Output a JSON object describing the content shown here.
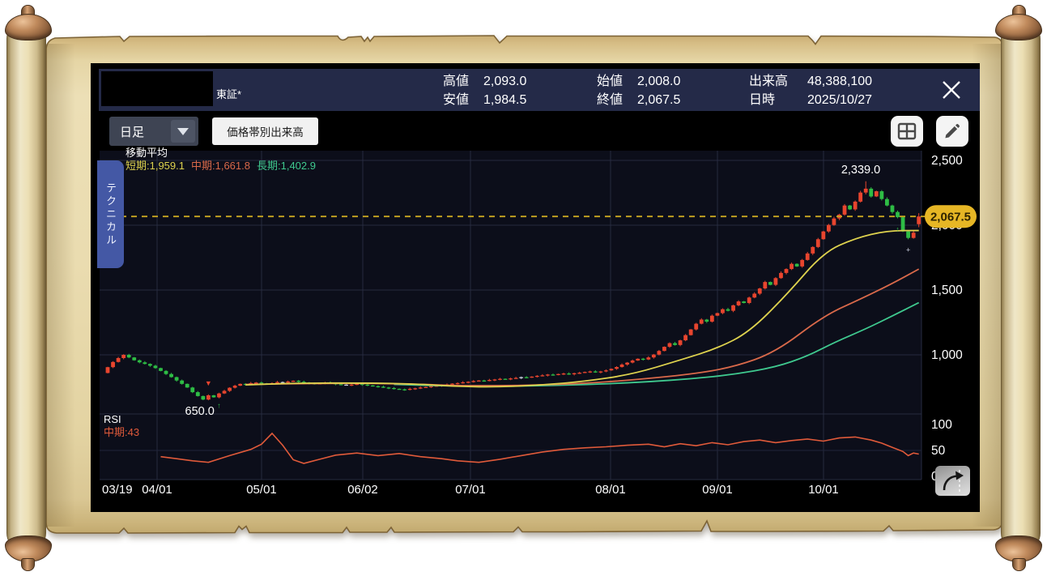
{
  "header": {
    "exchange_label": "東証*",
    "stock_name_masked": true,
    "stats": [
      {
        "label": "高値",
        "value": "2,093.0"
      },
      {
        "label": "安値",
        "value": "1,984.5"
      },
      {
        "label": "始値",
        "value": "2,008.0"
      },
      {
        "label": "終値",
        "value": "2,067.5"
      },
      {
        "label": "出来高",
        "value": "48,388,100"
      },
      {
        "label": "日時",
        "value": "2025/10/27"
      }
    ]
  },
  "toolbar": {
    "timeframe_value": "日足",
    "volume_by_price_label": "価格帯別出来高",
    "icons": [
      "grid-layout-icon",
      "pencil-icon"
    ]
  },
  "side_tab_label": "テクニカル",
  "legend": {
    "title": "移動平均",
    "short": "短期:1,959.1",
    "mid": "中期:1,661.8",
    "long": "長期:1,402.9"
  },
  "rsi_legend": {
    "title": "RSI",
    "mid": "中期:43"
  },
  "annotations": {
    "high": "2,339.0",
    "low": "650.0",
    "current": "2,067.5"
  },
  "axes": {
    "x_labels": [
      "03/19",
      "04/01",
      "05/01",
      "06/02",
      "07/01",
      "08/01",
      "09/01",
      "10/01"
    ],
    "price_ticks": [
      {
        "label": "2,500",
        "value": 2500
      },
      {
        "label": "2,000",
        "value": 2000
      },
      {
        "label": "1,500",
        "value": 1500
      },
      {
        "label": "1,000",
        "value": 1000
      }
    ],
    "rsi_ticks": [
      {
        "label": "100",
        "value": 100
      },
      {
        "label": "50",
        "value": 50
      },
      {
        "label": "0",
        "value": 0
      }
    ]
  },
  "chart_data": {
    "type": "candlestick+line",
    "period": "daily 2025/03/19 - 2025/10/27",
    "first_open": 860,
    "closes": [
      905,
      945,
      975,
      1000,
      980,
      958,
      942,
      930,
      916,
      898,
      876,
      852,
      828,
      802,
      776,
      748,
      712,
      682,
      655,
      688,
      672,
      702,
      722,
      746,
      762,
      776,
      770,
      782,
      786,
      780,
      776,
      782,
      790,
      786,
      794,
      800,
      792,
      786,
      780,
      776,
      780,
      786,
      780,
      774,
      770,
      766,
      770,
      776,
      770,
      764,
      758,
      754,
      748,
      744,
      738,
      734,
      730,
      738,
      742,
      748,
      752,
      758,
      762,
      768,
      772,
      778,
      782,
      788,
      792,
      798,
      802,
      800,
      806,
      810,
      815,
      812,
      818,
      822,
      828,
      825,
      832,
      838,
      842,
      848,
      845,
      852,
      856,
      850,
      858,
      862,
      868,
      872,
      866,
      872,
      880,
      892,
      906,
      925,
      940,
      956,
      970,
      964,
      980,
      1002,
      1030,
      1062,
      1090,
      1076,
      1112,
      1152,
      1196,
      1240,
      1272,
      1256,
      1302,
      1322,
      1352,
      1340,
      1382,
      1412,
      1400,
      1442,
      1472,
      1512,
      1562,
      1540,
      1592,
      1632,
      1662,
      1702,
      1682,
      1732,
      1782,
      1832,
      1892,
      1952,
      2002,
      2052,
      2082,
      2152,
      2122,
      2182,
      2252,
      2282,
      2222,
      2262,
      2202,
      2152,
      2102,
      2062,
      1952,
      1902,
      1942,
      2067.5
    ],
    "last_candle": {
      "open": 2008,
      "high": 2093,
      "low": 1984.5,
      "close": 2067.5
    },
    "key_high": {
      "index": 143,
      "value": 2339
    },
    "key_low": {
      "index": 18,
      "value": 650
    },
    "doji_days": [
      33,
      45,
      78
    ],
    "ma_short_value": 1959.1,
    "ma_mid_value": 1661.8,
    "ma_long_value": 1402.9,
    "rsi_mid_value": 43,
    "ma_short": [
      [
        26,
        768
      ],
      [
        36,
        782
      ],
      [
        48,
        783
      ],
      [
        58,
        776
      ],
      [
        66,
        755
      ],
      [
        74,
        752
      ],
      [
        82,
        768
      ],
      [
        90,
        795
      ],
      [
        99,
        850
      ],
      [
        108,
        960
      ],
      [
        115,
        1050
      ],
      [
        121,
        1175
      ],
      [
        128,
        1460
      ],
      [
        135,
        1790
      ],
      [
        141,
        1900
      ],
      [
        147,
        1958
      ],
      [
        153,
        1959.1
      ]
    ],
    "ma_mid": [
      [
        26,
        772
      ],
      [
        40,
        780
      ],
      [
        50,
        780
      ],
      [
        60,
        772
      ],
      [
        66,
        762
      ],
      [
        74,
        762
      ],
      [
        82,
        768
      ],
      [
        90,
        780
      ],
      [
        99,
        806
      ],
      [
        110,
        850
      ],
      [
        118,
        905
      ],
      [
        126,
        1020
      ],
      [
        135,
        1300
      ],
      [
        142,
        1430
      ],
      [
        148,
        1550
      ],
      [
        153,
        1661.8
      ]
    ],
    "ma_long": [
      [
        54,
        772
      ],
      [
        64,
        760
      ],
      [
        74,
        756
      ],
      [
        84,
        764
      ],
      [
        94,
        776
      ],
      [
        102,
        792
      ],
      [
        110,
        815
      ],
      [
        118,
        848
      ],
      [
        126,
        905
      ],
      [
        132,
        990
      ],
      [
        137,
        1095
      ],
      [
        143,
        1200
      ],
      [
        148,
        1300
      ],
      [
        153,
        1402.9
      ]
    ],
    "rsi": [
      [
        10,
        38
      ],
      [
        13,
        34
      ],
      [
        16,
        30
      ],
      [
        19,
        27
      ],
      [
        23,
        40
      ],
      [
        27,
        52
      ],
      [
        29,
        62
      ],
      [
        31,
        83
      ],
      [
        33,
        60
      ],
      [
        35,
        32
      ],
      [
        37,
        25
      ],
      [
        40,
        33
      ],
      [
        43,
        41
      ],
      [
        47,
        45
      ],
      [
        51,
        40
      ],
      [
        55,
        44
      ],
      [
        59,
        38
      ],
      [
        63,
        34
      ],
      [
        66,
        30
      ],
      [
        70,
        27
      ],
      [
        74,
        33
      ],
      [
        78,
        40
      ],
      [
        82,
        47
      ],
      [
        86,
        52
      ],
      [
        90,
        55
      ],
      [
        94,
        57
      ],
      [
        98,
        60
      ],
      [
        102,
        62
      ],
      [
        105,
        57
      ],
      [
        108,
        63
      ],
      [
        111,
        59
      ],
      [
        114,
        65
      ],
      [
        117,
        61
      ],
      [
        120,
        67
      ],
      [
        123,
        70
      ],
      [
        126,
        65
      ],
      [
        129,
        69
      ],
      [
        132,
        72
      ],
      [
        135,
        68
      ],
      [
        138,
        74
      ],
      [
        141,
        76
      ],
      [
        144,
        70
      ],
      [
        146,
        64
      ],
      [
        148,
        56
      ],
      [
        150,
        48
      ],
      [
        151,
        40
      ],
      [
        152,
        45
      ],
      [
        153,
        43
      ]
    ],
    "markers": [
      {
        "day": 19,
        "symbol": "▼",
        "color": "#e8442e",
        "position": "above"
      },
      {
        "day": 21,
        "symbol": "↑",
        "color": "#2ebd45",
        "position": "below"
      },
      {
        "day": 149,
        "symbol": "↑",
        "color": "#2ebd45",
        "position": "below"
      },
      {
        "day": 151,
        "symbol": "+",
        "color": "#c9cede",
        "position": "below"
      }
    ],
    "colors": {
      "up": "#e8452e",
      "down": "#2ebd45",
      "doji": "#c9cede",
      "ma_short": "#ded24e",
      "ma_mid": "#d9694a",
      "ma_long": "#3fc98f",
      "rsi": "#e05a3a",
      "current_line": "#c9a821",
      "badge_bg": "#e6b625",
      "badge_text": "#2e2300",
      "grid": "#262b3f",
      "plot_bg": "#0c0e1a",
      "header_bg": "#242a48"
    }
  }
}
